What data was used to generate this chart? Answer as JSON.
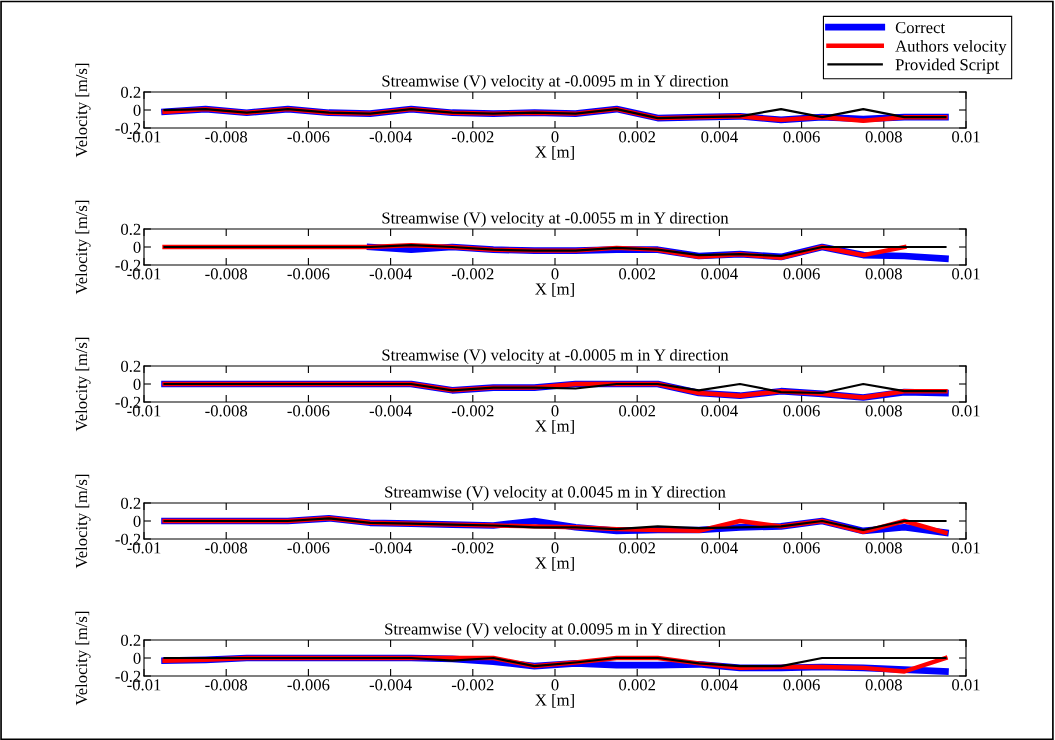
{
  "chart_data": [
    {
      "type": "line",
      "title": "Streamwise (V) velocity at -0.0095 m in Y direction",
      "xlabel": "X [m]",
      "ylabel": "Velocity [m/s]",
      "legend": "top right",
      "x": [
        -0.0095,
        -0.0085,
        -0.0075,
        -0.0065,
        -0.0055,
        -0.0045,
        -0.0035,
        -0.0025,
        -0.0015,
        -0.0005,
        0.0005,
        0.0015,
        0.0025,
        0.0035,
        0.0045,
        0.0055,
        0.0065,
        0.0075,
        0.0085,
        0.0095
      ],
      "xlim": [
        -0.01,
        0.01
      ],
      "xticks": [
        -0.01,
        -0.008,
        -0.006,
        -0.004,
        -0.002,
        0,
        0.002,
        0.004,
        0.006,
        0.008,
        0.01
      ],
      "ylim": [
        -0.2,
        0.2
      ],
      "yticks": [
        -0.2,
        0,
        0.2
      ],
      "series": [
        {
          "name": "Correct",
          "color": "#0000ff",
          "values": [
            -0.02,
            0.01,
            -0.03,
            0.01,
            -0.03,
            -0.04,
            0.01,
            -0.03,
            -0.04,
            -0.03,
            -0.04,
            0.01,
            -0.09,
            -0.08,
            -0.07,
            -0.11,
            -0.08,
            -0.1,
            -0.08,
            -0.08
          ]
        },
        {
          "name": "Authors velocity",
          "color": "#ff0000",
          "values": [
            -0.02,
            0.01,
            -0.03,
            0.01,
            -0.03,
            -0.04,
            0.01,
            -0.03,
            -0.04,
            -0.03,
            -0.04,
            0.01,
            -0.09,
            -0.08,
            -0.07,
            -0.11,
            -0.08,
            -0.12,
            -0.08,
            -0.08
          ]
        },
        {
          "name": "Provided Script",
          "color": "#000000",
          "values": [
            0,
            0.01,
            -0.03,
            0.01,
            -0.03,
            -0.04,
            0.01,
            -0.03,
            -0.04,
            -0.03,
            -0.04,
            0.01,
            -0.09,
            -0.08,
            -0.07,
            0.01,
            -0.08,
            0.01,
            -0.08,
            -0.08
          ]
        }
      ]
    },
    {
      "type": "line",
      "title": "Streamwise (V) velocity at -0.0055 m in Y direction",
      "xlabel": "X [m]",
      "ylabel": "Velocity [m/s]",
      "x": [
        -0.0095,
        -0.0085,
        -0.0075,
        -0.0065,
        -0.0055,
        -0.0045,
        -0.0035,
        -0.0025,
        -0.0015,
        -0.0005,
        0.0005,
        0.0015,
        0.0025,
        0.0035,
        0.0045,
        0.0055,
        0.0065,
        0.0075,
        0.0085,
        0.0095
      ],
      "xlim": [
        -0.01,
        0.01
      ],
      "xticks": [
        -0.01,
        -0.008,
        -0.006,
        -0.004,
        -0.002,
        0,
        0.002,
        0.004,
        0.006,
        0.008,
        0.01
      ],
      "ylim": [
        -0.2,
        0.2
      ],
      "yticks": [
        -0.2,
        0,
        0.2
      ],
      "series": [
        {
          "color": "#0000ff",
          "values": [
            null,
            null,
            null,
            null,
            null,
            0,
            -0.03,
            0,
            -0.03,
            -0.04,
            -0.04,
            -0.03,
            -0.03,
            -0.1,
            -0.08,
            -0.11,
            0,
            -0.09,
            -0.1,
            -0.13
          ]
        },
        {
          "color": "#ff0000",
          "values": [
            0,
            0,
            0,
            0,
            0,
            0,
            0.02,
            0,
            -0.03,
            -0.04,
            -0.04,
            -0.01,
            -0.03,
            -0.11,
            -0.08,
            -0.12,
            0,
            -0.09,
            0,
            null
          ]
        },
        {
          "color": "#000000",
          "values": [
            0,
            0,
            0,
            0,
            0,
            0,
            0.02,
            0,
            -0.03,
            -0.04,
            -0.04,
            -0.01,
            -0.03,
            -0.09,
            -0.08,
            -0.1,
            0,
            0,
            0,
            0
          ]
        }
      ]
    },
    {
      "type": "line",
      "title": "Streamwise (V) velocity at -0.0005 m in Y direction",
      "xlabel": "X [m]",
      "ylabel": "Velocity [m/s]",
      "x": [
        -0.0095,
        -0.0085,
        -0.0075,
        -0.0065,
        -0.0055,
        -0.0045,
        -0.0035,
        -0.0025,
        -0.0015,
        -0.0005,
        0.0005,
        0.0015,
        0.0025,
        0.0035,
        0.0045,
        0.0055,
        0.0065,
        0.0075,
        0.0085,
        0.0095
      ],
      "xlim": [
        -0.01,
        0.01
      ],
      "xticks": [
        -0.01,
        -0.008,
        -0.006,
        -0.004,
        -0.002,
        0,
        0.002,
        0.004,
        0.006,
        0.008,
        0.01
      ],
      "ylim": [
        -0.2,
        0.2
      ],
      "yticks": [
        -0.2,
        0,
        0.2
      ],
      "series": [
        {
          "color": "#0000ff",
          "values": [
            0,
            0,
            0,
            0,
            0,
            0,
            0,
            -0.07,
            -0.04,
            -0.04,
            0,
            0,
            0,
            -0.1,
            -0.13,
            -0.08,
            -0.11,
            -0.15,
            -0.09,
            -0.1
          ]
        },
        {
          "color": "#ff0000",
          "values": [
            0,
            0,
            0,
            0,
            0,
            0,
            0,
            -0.07,
            -0.04,
            -0.04,
            0,
            0,
            0,
            -0.1,
            -0.13,
            -0.08,
            -0.11,
            -0.15,
            -0.08,
            -0.08
          ]
        },
        {
          "color": "#000000",
          "values": [
            0,
            0,
            0,
            0,
            0,
            0,
            0,
            -0.07,
            -0.04,
            -0.04,
            -0.05,
            0,
            0,
            -0.07,
            0,
            -0.09,
            -0.1,
            0,
            -0.08,
            -0.08
          ]
        }
      ]
    },
    {
      "type": "line",
      "title": "Streamwise (V) velocity at 0.0045 m in Y direction",
      "xlabel": "X [m]",
      "ylabel": "Velocity [m/s]",
      "x": [
        -0.0095,
        -0.0085,
        -0.0075,
        -0.0065,
        -0.0055,
        -0.0045,
        -0.0035,
        -0.0025,
        -0.0015,
        -0.0005,
        0.0005,
        0.0015,
        0.0025,
        0.0035,
        0.0045,
        0.0055,
        0.0065,
        0.0075,
        0.0085,
        0.0095
      ],
      "xlim": [
        -0.01,
        0.01
      ],
      "xticks": [
        -0.01,
        -0.008,
        -0.006,
        -0.004,
        -0.002,
        0,
        0.002,
        0.004,
        0.006,
        0.008,
        0.01
      ],
      "ylim": [
        -0.2,
        0.2
      ],
      "yticks": [
        -0.2,
        0,
        0.2
      ],
      "series": [
        {
          "color": "#0000ff",
          "values": [
            0,
            0,
            0,
            0,
            0.03,
            -0.02,
            -0.03,
            -0.04,
            -0.05,
            0,
            -0.07,
            -0.11,
            -0.1,
            -0.1,
            -0.07,
            -0.06,
            0,
            -0.11,
            -0.07,
            -0.13
          ]
        },
        {
          "color": "#ff0000",
          "values": [
            0,
            0,
            0,
            0,
            0.03,
            -0.02,
            -0.03,
            -0.04,
            -0.05,
            -0.06,
            -0.07,
            -0.09,
            -0.1,
            -0.11,
            0,
            -0.06,
            0,
            -0.12,
            0,
            -0.13
          ]
        },
        {
          "color": "#000000",
          "values": [
            0,
            0,
            0,
            0,
            0.03,
            -0.02,
            -0.03,
            -0.04,
            -0.05,
            -0.07,
            -0.07,
            -0.09,
            -0.06,
            -0.08,
            -0.07,
            -0.06,
            0,
            -0.1,
            0,
            0
          ]
        }
      ]
    },
    {
      "type": "line",
      "title": "Streamwise (V) velocity at 0.0095 m in Y direction",
      "xlabel": "X [m]",
      "ylabel": "Velocity [m/s]",
      "x": [
        -0.0095,
        -0.0085,
        -0.0075,
        -0.0065,
        -0.0055,
        -0.0045,
        -0.0035,
        -0.0025,
        -0.0015,
        -0.0005,
        0.0005,
        0.0015,
        0.0025,
        0.0035,
        0.0045,
        0.0055,
        0.0065,
        0.0075,
        0.0085,
        0.0095
      ],
      "xlim": [
        -0.01,
        0.01
      ],
      "xticks": [
        -0.01,
        -0.008,
        -0.006,
        -0.004,
        -0.002,
        0,
        0.002,
        0.004,
        0.006,
        0.008,
        0.01
      ],
      "ylim": [
        -0.2,
        0.2
      ],
      "yticks": [
        -0.2,
        0,
        0.2
      ],
      "series": [
        {
          "color": "#0000ff",
          "values": [
            -0.03,
            -0.02,
            0,
            0,
            0,
            0,
            0,
            -0.01,
            -0.04,
            -0.09,
            -0.06,
            -0.08,
            -0.08,
            -0.07,
            -0.11,
            -0.11,
            -0.1,
            -0.11,
            -0.13,
            -0.15
          ]
        },
        {
          "color": "#ff0000",
          "values": [
            -0.03,
            -0.02,
            0,
            0,
            0,
            0,
            0,
            0,
            0,
            -0.09,
            -0.05,
            0,
            0,
            -0.06,
            -0.11,
            -0.1,
            -0.1,
            -0.11,
            -0.15,
            0
          ]
        },
        {
          "color": "#000000",
          "values": [
            0,
            0,
            0,
            0,
            0,
            0,
            0,
            -0.03,
            0,
            -0.09,
            -0.05,
            0,
            0,
            -0.06,
            -0.09,
            -0.09,
            0,
            0,
            0,
            0
          ]
        }
      ]
    }
  ]
}
